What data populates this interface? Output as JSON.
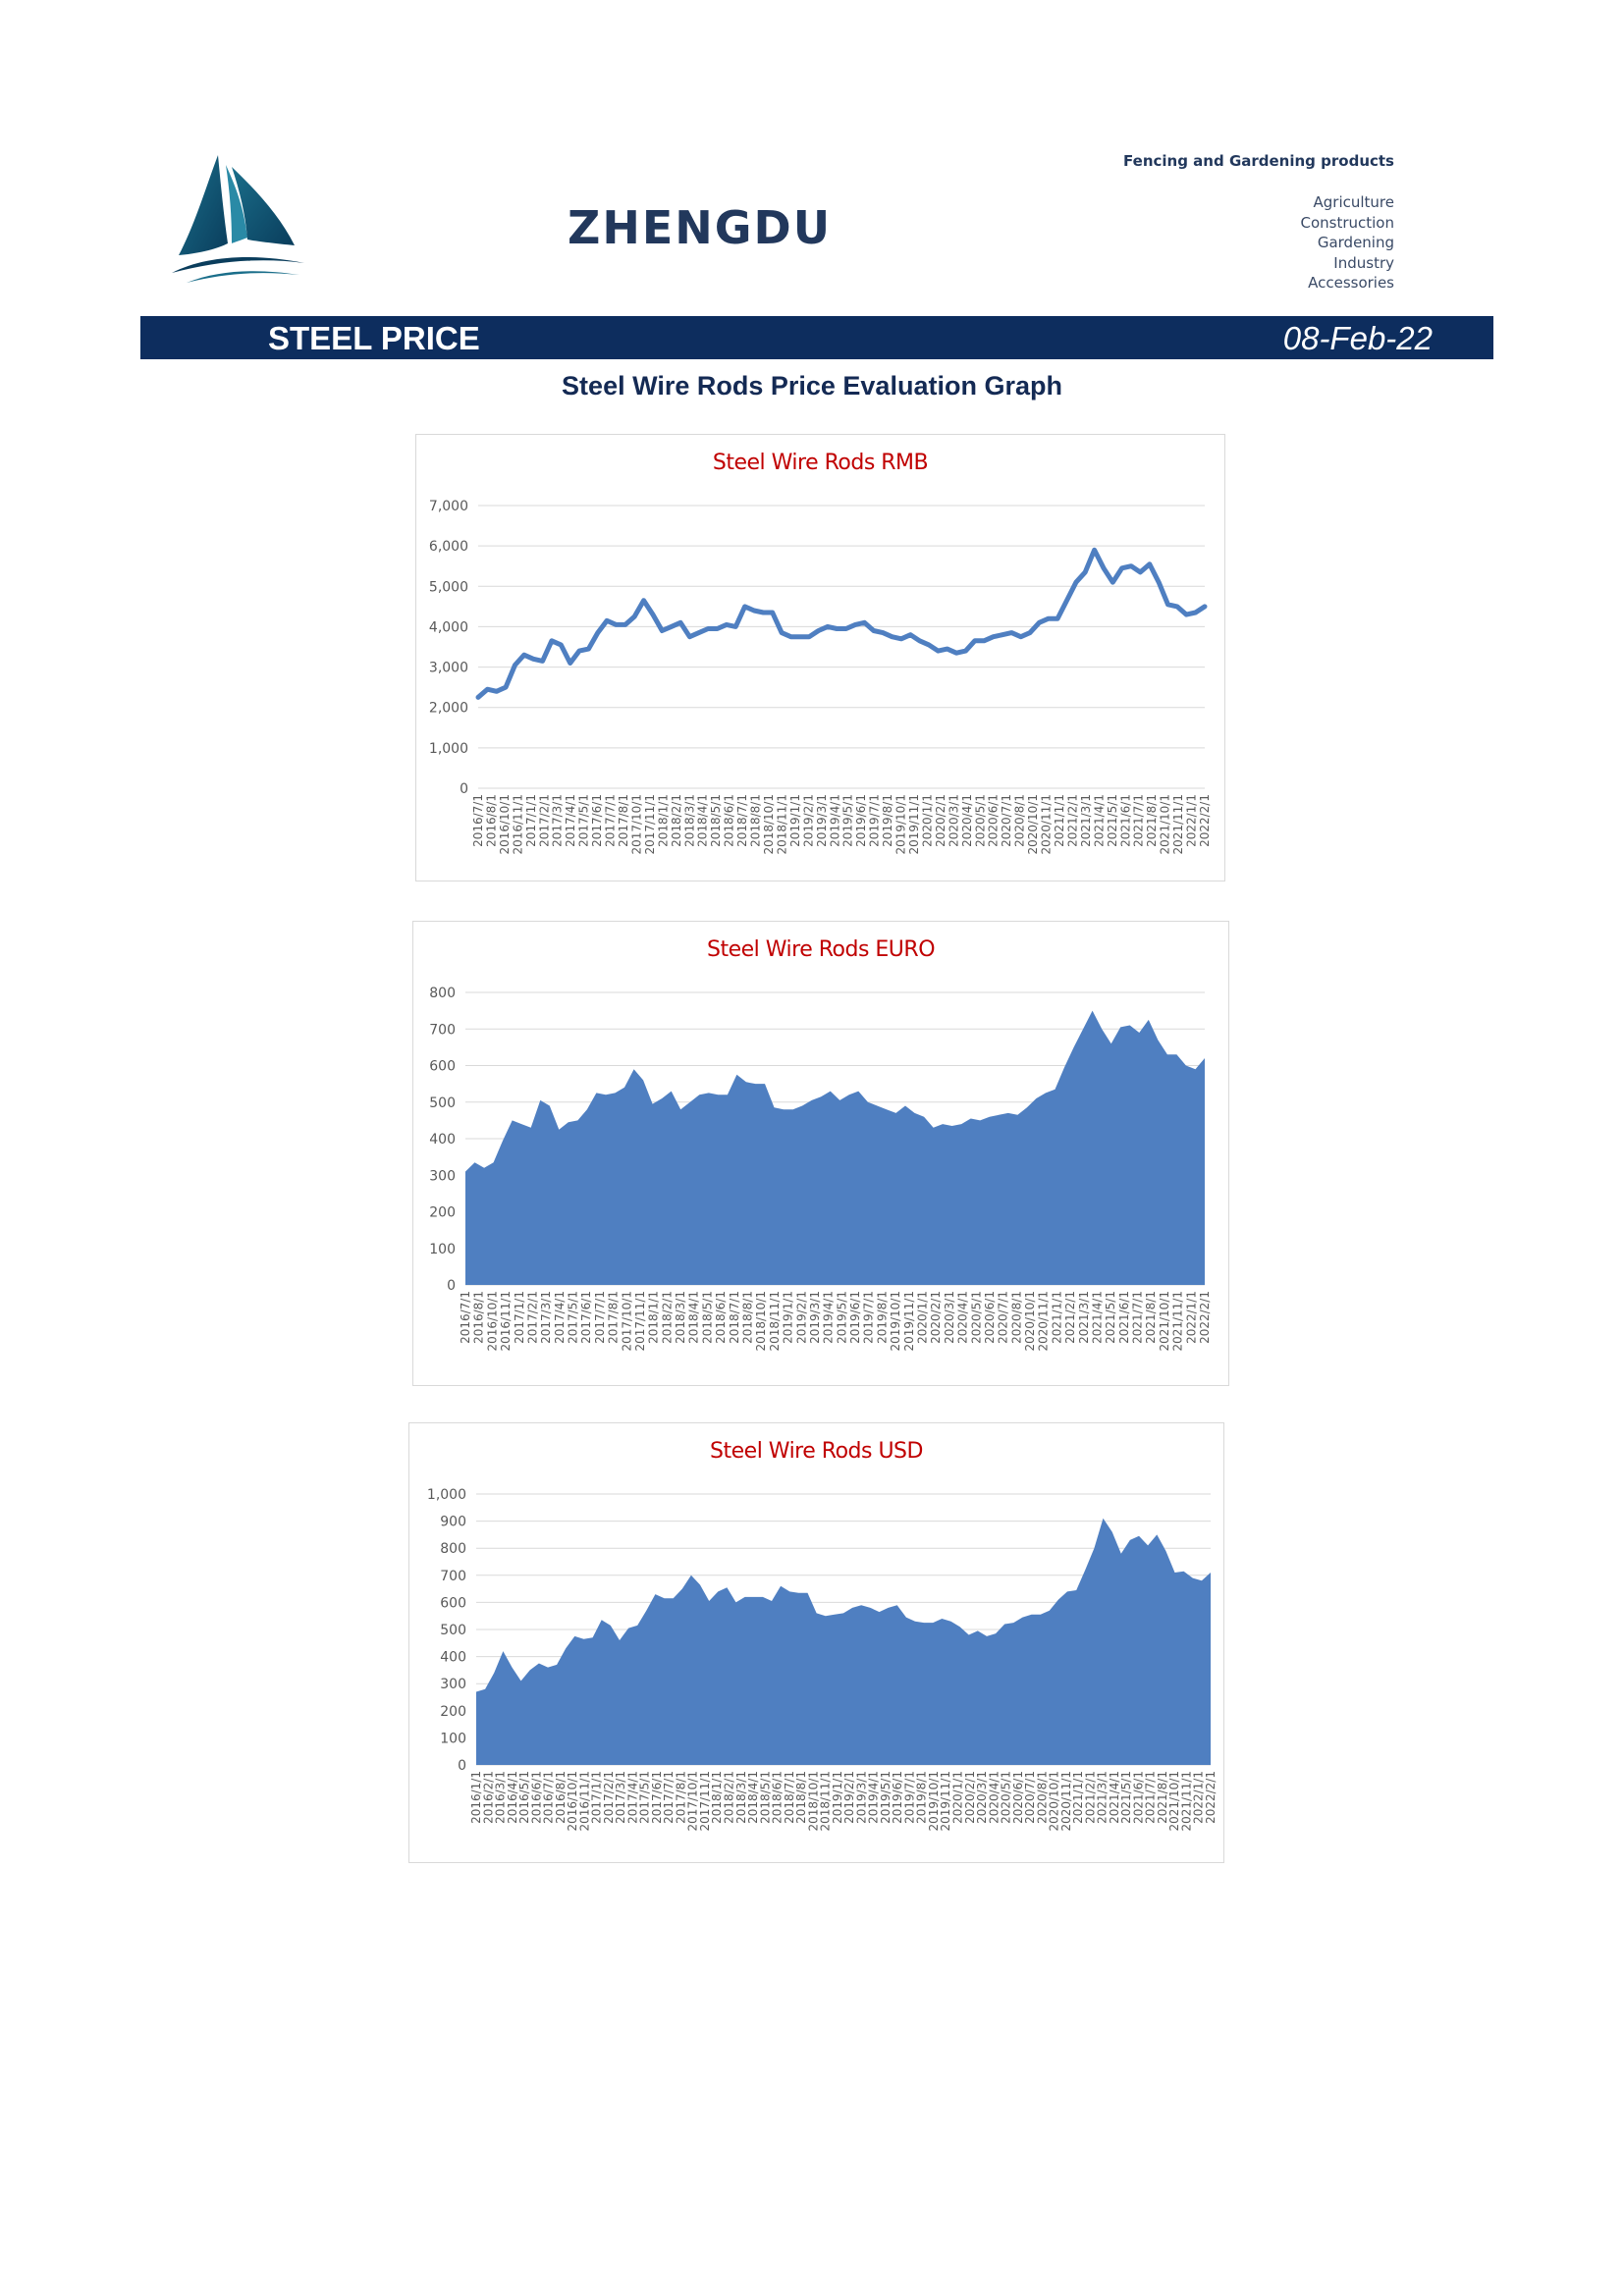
{
  "header": {
    "brand": "ZHENGDU",
    "tagline": "Fencing and Gardening products",
    "categories": [
      "Agriculture",
      "Construction",
      "Gardening",
      "Industry",
      "Accessories"
    ]
  },
  "banner": {
    "title": "STEEL PRICE",
    "date": "08-Feb-22",
    "color": "#0d2d5e"
  },
  "page_title": "Steel Wire Rods Price Evaluation Graph",
  "chart_data": [
    {
      "type": "line",
      "title": "Steel Wire Rods RMB",
      "xlabel": "",
      "ylabel": "",
      "ylim": [
        0,
        7000
      ],
      "yticks": [
        "0",
        "1,000",
        "2,000",
        "3,000",
        "4,000",
        "5,000",
        "6,000",
        "7,000"
      ],
      "grid": true,
      "color": "#4f7fc1",
      "xticks": [
        "2016/7/1",
        "2016/8/1",
        "2016/10/1",
        "2016/11/1",
        "2017/1/1",
        "2017/2/1",
        "2017/3/1",
        "2017/4/1",
        "2017/5/1",
        "2017/6/1",
        "2017/7/1",
        "2017/8/1",
        "2017/10/1",
        "2017/11/1",
        "2018/1/1",
        "2018/2/1",
        "2018/3/1",
        "2018/4/1",
        "2018/5/1",
        "2018/6/1",
        "2018/7/1",
        "2018/8/1",
        "2018/10/1",
        "2018/11/1",
        "2019/1/1",
        "2019/2/1",
        "2019/3/1",
        "2019/4/1",
        "2019/5/1",
        "2019/6/1",
        "2019/7/1",
        "2019/8/1",
        "2019/10/1",
        "2019/11/1",
        "2020/1/1",
        "2020/2/1",
        "2020/3/1",
        "2020/4/1",
        "2020/5/1",
        "2020/6/1",
        "2020/7/1",
        "2020/8/1",
        "2020/10/1",
        "2020/11/1",
        "2021/1/1",
        "2021/2/1",
        "2021/3/1",
        "2021/4/1",
        "2021/5/1",
        "2021/6/1",
        "2021/7/1",
        "2021/8/1",
        "2021/10/1",
        "2021/11/1",
        "2022/1/1",
        "2022/2/1"
      ],
      "values": [
        2250,
        2450,
        2400,
        2500,
        3050,
        3300,
        3200,
        3150,
        3650,
        3550,
        3100,
        3400,
        3450,
        3850,
        4150,
        4050,
        4050,
        4250,
        4650,
        4300,
        3900,
        4000,
        4100,
        3750,
        3850,
        3950,
        3950,
        4050,
        4000,
        4500,
        4400,
        4350,
        4350,
        3850,
        3750,
        3750,
        3750,
        3900,
        4000,
        3950,
        3950,
        4050,
        4100,
        3900,
        3850,
        3750,
        3700,
        3800,
        3650,
        3550,
        3400,
        3450,
        3350,
        3400,
        3650,
        3650,
        3750,
        3800,
        3850,
        3750,
        3850,
        4100,
        4200,
        4200,
        4650,
        5100,
        5350,
        5900,
        5450,
        5100,
        5450,
        5500,
        5350,
        5550,
        5100,
        4550,
        4500,
        4300,
        4350,
        4500
      ]
    },
    {
      "type": "area",
      "title": "Steel Wire Rods EURO",
      "xlabel": "",
      "ylabel": "",
      "ylim": [
        0,
        800
      ],
      "yticks": [
        "0",
        "100",
        "200",
        "300",
        "400",
        "500",
        "600",
        "700",
        "800"
      ],
      "grid": true,
      "color": "#4f7fc1",
      "xticks": [
        "2016/7/1",
        "2016/8/1",
        "2016/10/1",
        "2016/11/1",
        "2017/1/1",
        "2017/2/1",
        "2017/3/1",
        "2017/4/1",
        "2017/5/1",
        "2017/6/1",
        "2017/7/1",
        "2017/8/1",
        "2017/10/1",
        "2017/11/1",
        "2018/1/1",
        "2018/2/1",
        "2018/3/1",
        "2018/4/1",
        "2018/5/1",
        "2018/6/1",
        "2018/7/1",
        "2018/8/1",
        "2018/10/1",
        "2018/11/1",
        "2019/1/1",
        "2019/2/1",
        "2019/3/1",
        "2019/4/1",
        "2019/5/1",
        "2019/6/1",
        "2019/7/1",
        "2019/8/1",
        "2019/10/1",
        "2019/11/1",
        "2020/1/1",
        "2020/2/1",
        "2020/3/1",
        "2020/4/1",
        "2020/5/1",
        "2020/6/1",
        "2020/7/1",
        "2020/8/1",
        "2020/10/1",
        "2020/11/1",
        "2021/1/1",
        "2021/2/1",
        "2021/3/1",
        "2021/4/1",
        "2021/5/1",
        "2021/6/1",
        "2021/7/1",
        "2021/8/1",
        "2021/10/1",
        "2021/11/1",
        "2022/1/1",
        "2022/2/1"
      ],
      "values": [
        310,
        335,
        320,
        335,
        395,
        450,
        440,
        430,
        505,
        490,
        425,
        445,
        450,
        480,
        525,
        520,
        525,
        540,
        590,
        560,
        495,
        510,
        530,
        480,
        500,
        520,
        525,
        520,
        520,
        575,
        555,
        550,
        550,
        485,
        480,
        480,
        490,
        505,
        515,
        530,
        505,
        520,
        530,
        500,
        490,
        480,
        470,
        490,
        470,
        460,
        430,
        440,
        435,
        440,
        455,
        450,
        460,
        465,
        470,
        465,
        485,
        510,
        525,
        535,
        595,
        650,
        700,
        750,
        700,
        660,
        705,
        710,
        690,
        725,
        670,
        630,
        630,
        600,
        590,
        620
      ]
    },
    {
      "type": "area",
      "title": "Steel Wire Rods USD",
      "xlabel": "",
      "ylabel": "",
      "ylim": [
        0,
        1000
      ],
      "yticks": [
        "0",
        "100",
        "200",
        "300",
        "400",
        "500",
        "600",
        "700",
        "800",
        "900",
        "1,000"
      ],
      "grid": true,
      "color": "#4f7fc1",
      "xticks": [
        "2016/1/1",
        "2016/2/1",
        "2016/3/1",
        "2016/4/1",
        "2016/5/1",
        "2016/6/1",
        "2016/7/1",
        "2016/8/1",
        "2016/10/1",
        "2016/11/1",
        "2017/1/1",
        "2017/2/1",
        "2017/3/1",
        "2017/4/1",
        "2017/5/1",
        "2017/6/1",
        "2017/7/1",
        "2017/8/1",
        "2017/10/1",
        "2017/11/1",
        "2018/1/1",
        "2018/2/1",
        "2018/3/1",
        "2018/4/1",
        "2018/5/1",
        "2018/6/1",
        "2018/7/1",
        "2018/8/1",
        "2018/10/1",
        "2018/11/1",
        "2019/1/1",
        "2019/2/1",
        "2019/3/1",
        "2019/4/1",
        "2019/5/1",
        "2019/6/1",
        "2019/7/1",
        "2019/8/1",
        "2019/10/1",
        "2019/11/1",
        "2020/1/1",
        "2020/2/1",
        "2020/3/1",
        "2020/4/1",
        "2020/5/1",
        "2020/6/1",
        "2020/7/1",
        "2020/8/1",
        "2020/10/1",
        "2020/11/1",
        "2021/1/1",
        "2021/2/1",
        "2021/3/1",
        "2021/4/1",
        "2021/5/1",
        "2021/6/1",
        "2021/7/1",
        "2021/8/1",
        "2021/10/1",
        "2021/11/1",
        "2022/1/1",
        "2022/2/1"
      ],
      "values": [
        270,
        280,
        340,
        420,
        360,
        310,
        350,
        375,
        360,
        370,
        430,
        475,
        465,
        470,
        535,
        515,
        460,
        505,
        515,
        570,
        630,
        615,
        615,
        650,
        700,
        665,
        605,
        640,
        655,
        600,
        620,
        620,
        620,
        605,
        660,
        640,
        635,
        635,
        560,
        550,
        555,
        560,
        580,
        590,
        580,
        565,
        580,
        590,
        545,
        530,
        525,
        525,
        540,
        530,
        510,
        480,
        495,
        475,
        485,
        520,
        525,
        545,
        555,
        555,
        570,
        610,
        640,
        645,
        720,
        800,
        910,
        860,
        780,
        830,
        845,
        810,
        850,
        790,
        710,
        715,
        690,
        680,
        710
      ]
    }
  ]
}
